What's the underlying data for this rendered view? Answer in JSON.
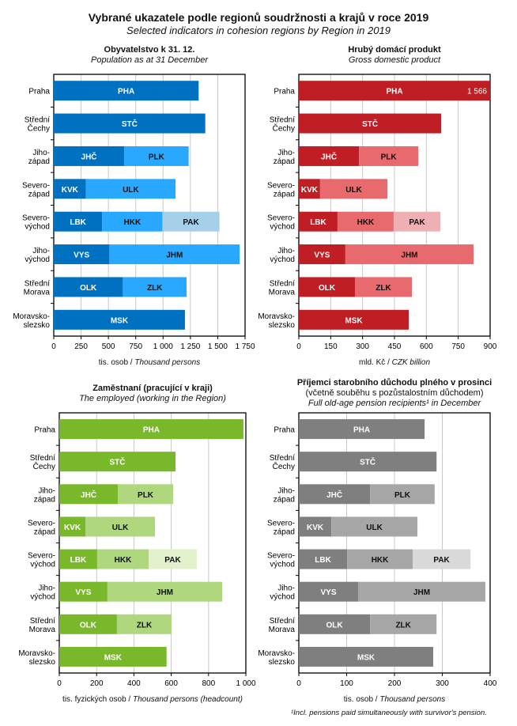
{
  "title": "Vybrané ukazatele podle regionů soudržnosti  a krajů v roce 2019",
  "subtitle": "Selected indicators in cohesion regions  by Region  in 2019",
  "footnote": "¹Incl. pensions paid simultaneously with survivor's pension.",
  "row_labels": [
    [
      "Praha"
    ],
    [
      "Střední",
      "Čechy"
    ],
    [
      "Jiho-",
      "západ"
    ],
    [
      "Severo-",
      "západ"
    ],
    [
      "Severo-",
      "východ"
    ],
    [
      "Jiho-",
      "východ"
    ],
    [
      "Střední",
      "Morava"
    ],
    [
      "Moravsko-",
      "slezsko"
    ]
  ],
  "chart_data": [
    {
      "type": "bar",
      "title": "Obyvatelstvo k 31. 12.",
      "subtitle": "Population as at 31 December",
      "xlabel_cz": "tis. osob / ",
      "xlabel_en": "Thousand persons",
      "xlim": [
        0,
        1750
      ],
      "ticks": [
        0,
        250,
        500,
        750,
        1000,
        1250,
        1500,
        1750
      ],
      "tick_labels": [
        "0",
        "250",
        "500",
        "750",
        "1 000",
        "1 250",
        "1 500",
        "1 750"
      ],
      "colors": [
        "#0070C0",
        "#29A8FF",
        "#A6CFEA"
      ],
      "rows": [
        [
          [
            "PHA",
            1325
          ]
        ],
        [
          [
            "STČ",
            1386
          ]
        ],
        [
          [
            "JHČ",
            644
          ],
          [
            "PLK",
            590
          ]
        ],
        [
          [
            "KVK",
            294
          ],
          [
            "ULK",
            820
          ]
        ],
        [
          [
            "LBK",
            443
          ],
          [
            "HKK",
            551
          ],
          [
            "PAK",
            522
          ]
        ],
        [
          [
            "VYS",
            509
          ],
          [
            "JHM",
            1192
          ]
        ],
        [
          [
            "OLK",
            632
          ],
          [
            "ZLK",
            583
          ]
        ],
        [
          [
            "MSK",
            1200
          ]
        ]
      ]
    },
    {
      "type": "bar",
      "title": "Hrubý domácí produkt",
      "subtitle": "Gross domestic product",
      "xlabel_cz": "mld. Kč / ",
      "xlabel_en": "CZK billion",
      "xlim": [
        0,
        900
      ],
      "ticks": [
        0,
        150,
        300,
        450,
        600,
        750,
        900
      ],
      "tick_labels": [
        "0",
        "150",
        "300",
        "450",
        "600",
        "750",
        "900"
      ],
      "colors": [
        "#BE1E24",
        "#E8696E",
        "#EFB0B3"
      ],
      "overflow_label": "1 566",
      "rows": [
        [
          [
            "PHA",
            1566
          ]
        ],
        [
          [
            "STČ",
            670
          ]
        ],
        [
          [
            "JHČ",
            283
          ],
          [
            "PLK",
            279
          ]
        ],
        [
          [
            "KVK",
            100
          ],
          [
            "ULK",
            317
          ]
        ],
        [
          [
            "LBK",
            182
          ],
          [
            "HKK",
            264
          ],
          [
            "PAK",
            220
          ]
        ],
        [
          [
            "VYS",
            219
          ],
          [
            "JHM",
            603
          ]
        ],
        [
          [
            "OLK",
            264
          ],
          [
            "ZLK",
            268
          ]
        ],
        [
          [
            "MSK",
            517
          ]
        ]
      ]
    },
    {
      "type": "bar",
      "title": "Zaměstnaní (pracující v kraji)",
      "subtitle": "The employed (working in the Region)",
      "xlabel_cz": "tis. fyzických osob / ",
      "xlabel_en": "Thousand persons (headcount)",
      "xlim": [
        0,
        1000
      ],
      "ticks": [
        0,
        200,
        400,
        600,
        800,
        1000
      ],
      "tick_labels": [
        "0",
        "200",
        "400",
        "600",
        "800",
        "1 000"
      ],
      "colors": [
        "#7AB82B",
        "#AED77E",
        "#E2F0CC"
      ],
      "rows": [
        [
          [
            "PHA",
            987
          ]
        ],
        [
          [
            "STČ",
            623
          ]
        ],
        [
          [
            "JHČ",
            314
          ],
          [
            "PLK",
            296
          ]
        ],
        [
          [
            "KVK",
            140
          ],
          [
            "ULK",
            373
          ]
        ],
        [
          [
            "LBK",
            203
          ],
          [
            "HKK",
            276
          ],
          [
            "PAK",
            258
          ]
        ],
        [
          [
            "VYS",
            258
          ],
          [
            "JHM",
            615
          ]
        ],
        [
          [
            "OLK",
            309
          ],
          [
            "ZLK",
            293
          ]
        ],
        [
          [
            "MSK",
            575
          ]
        ]
      ]
    },
    {
      "type": "bar",
      "title": "Příjemci starobního důchodu plného v prosinci",
      "subtitle2": "(včetně souběhu s pozůstalostním důchodem)",
      "subtitle": "Full old-age pension recipients¹ in December",
      "xlabel_cz": "tis. osob / ",
      "xlabel_en": "Thousand persons",
      "xlim": [
        0,
        400
      ],
      "ticks": [
        0,
        100,
        200,
        300,
        400
      ],
      "tick_labels": [
        "0",
        "100",
        "200",
        "300",
        "400"
      ],
      "colors": [
        "#7F7F7F",
        "#A6A6A6",
        "#D9D9D9"
      ],
      "rows": [
        [
          [
            "PHA",
            263
          ]
        ],
        [
          [
            "STČ",
            288
          ]
        ],
        [
          [
            "JHČ",
            149
          ],
          [
            "PLK",
            135
          ]
        ],
        [
          [
            "KVK",
            68
          ],
          [
            "ULK",
            180
          ]
        ],
        [
          [
            "LBK",
            101
          ],
          [
            "HKK",
            137
          ],
          [
            "PAK",
            121
          ]
        ],
        [
          [
            "VYS",
            124
          ],
          [
            "JHM",
            266
          ]
        ],
        [
          [
            "OLK",
            149
          ],
          [
            "ZLK",
            139
          ]
        ],
        [
          [
            "MSK",
            281
          ]
        ]
      ]
    }
  ]
}
